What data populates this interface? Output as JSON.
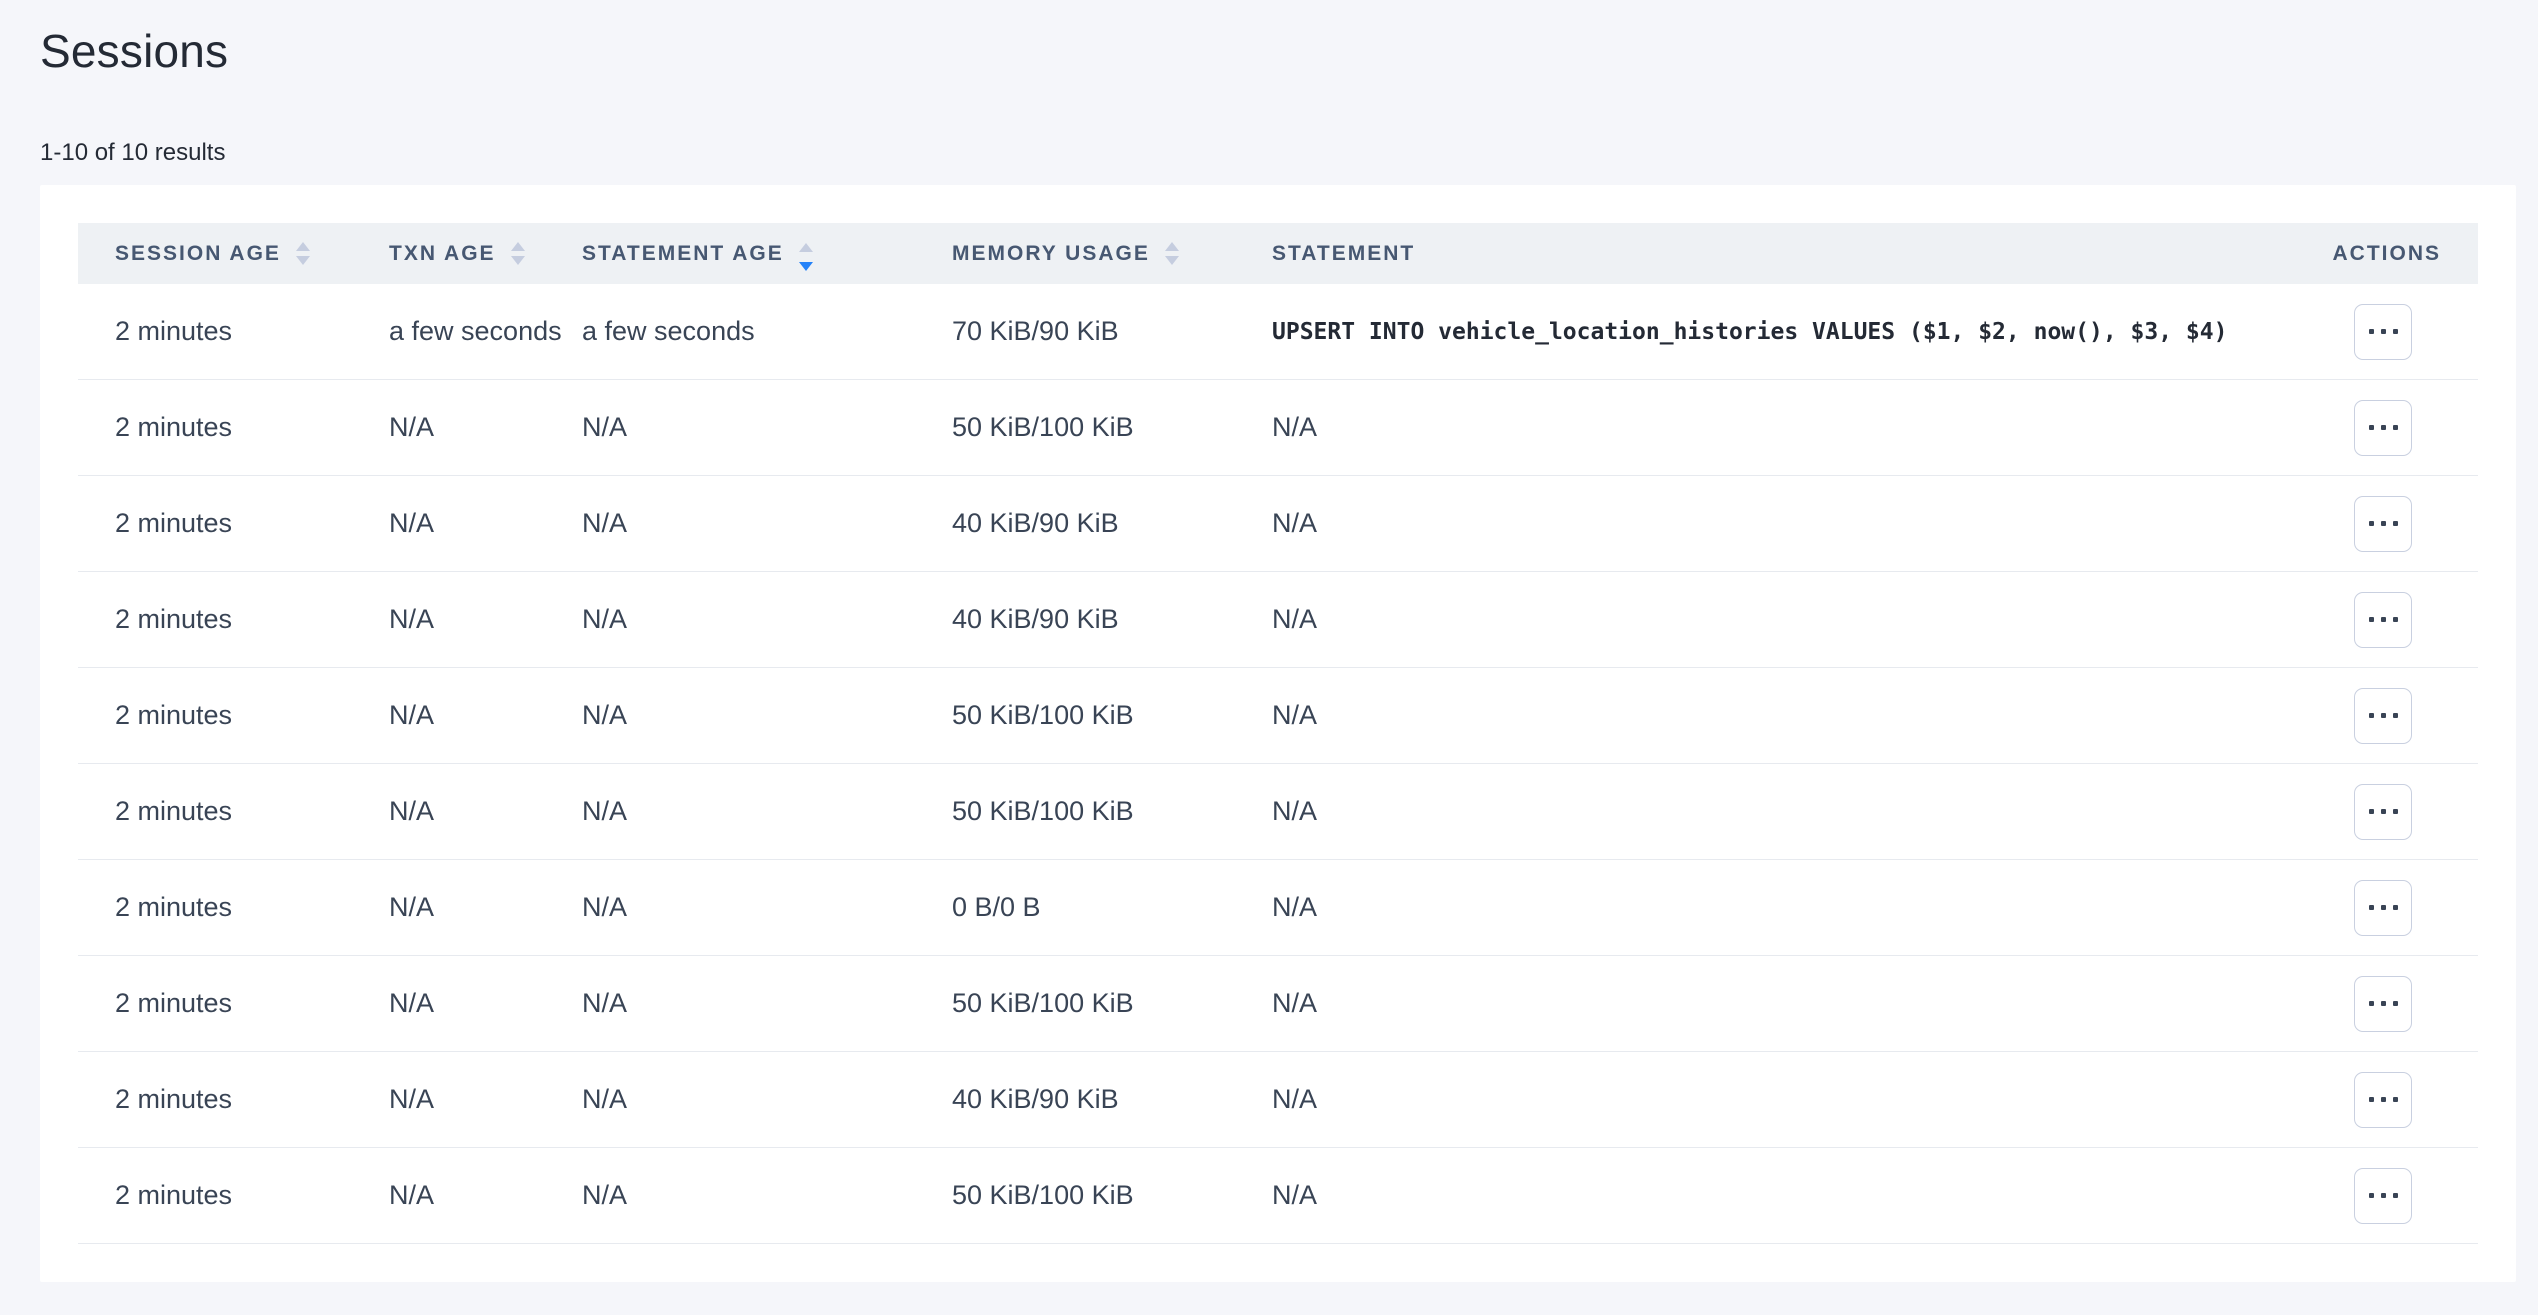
{
  "page": {
    "title": "Sessions",
    "results_summary": "1-10 of 10 results"
  },
  "colors": {
    "page_background": "#f5f6fa",
    "header_background": "#eef1f4",
    "header_text": "#475872",
    "cell_text": "#394455",
    "divider": "#e7eaef",
    "sort_arrow_inactive": "#c5cddf",
    "sort_arrow_active": "#2482f8",
    "action_button_border": "#c9d0e0"
  },
  "table": {
    "columns": [
      {
        "label": "SESSION AGE",
        "sortable": true,
        "sort": "none"
      },
      {
        "label": "TXN AGE",
        "sortable": true,
        "sort": "none"
      },
      {
        "label": "STATEMENT AGE",
        "sortable": true,
        "sort": "desc"
      },
      {
        "label": "MEMORY USAGE",
        "sortable": true,
        "sort": "none"
      },
      {
        "label": "STATEMENT",
        "sortable": false,
        "sort": "none"
      },
      {
        "label": "ACTIONS",
        "sortable": false,
        "sort": "none"
      }
    ],
    "actions_icon": "ellipsis-icon",
    "rows": [
      {
        "session_age": "2 minutes",
        "txn_age": "a few seconds",
        "statement_age": "a few seconds",
        "memory_usage": "70 KiB/90 KiB",
        "statement": "UPSERT INTO vehicle_location_histories VALUES ($1, $2, now(), $3, $4)"
      },
      {
        "session_age": "2 minutes",
        "txn_age": "N/A",
        "statement_age": "N/A",
        "memory_usage": "50 KiB/100 KiB",
        "statement": "N/A"
      },
      {
        "session_age": "2 minutes",
        "txn_age": "N/A",
        "statement_age": "N/A",
        "memory_usage": "40 KiB/90 KiB",
        "statement": "N/A"
      },
      {
        "session_age": "2 minutes",
        "txn_age": "N/A",
        "statement_age": "N/A",
        "memory_usage": "40 KiB/90 KiB",
        "statement": "N/A"
      },
      {
        "session_age": "2 minutes",
        "txn_age": "N/A",
        "statement_age": "N/A",
        "memory_usage": "50 KiB/100 KiB",
        "statement": "N/A"
      },
      {
        "session_age": "2 minutes",
        "txn_age": "N/A",
        "statement_age": "N/A",
        "memory_usage": "50 KiB/100 KiB",
        "statement": "N/A"
      },
      {
        "session_age": "2 minutes",
        "txn_age": "N/A",
        "statement_age": "N/A",
        "memory_usage": "0 B/0 B",
        "statement": "N/A"
      },
      {
        "session_age": "2 minutes",
        "txn_age": "N/A",
        "statement_age": "N/A",
        "memory_usage": "50 KiB/100 KiB",
        "statement": "N/A"
      },
      {
        "session_age": "2 minutes",
        "txn_age": "N/A",
        "statement_age": "N/A",
        "memory_usage": "40 KiB/90 KiB",
        "statement": "N/A"
      },
      {
        "session_age": "2 minutes",
        "txn_age": "N/A",
        "statement_age": "N/A",
        "memory_usage": "50 KiB/100 KiB",
        "statement": "N/A"
      }
    ]
  }
}
